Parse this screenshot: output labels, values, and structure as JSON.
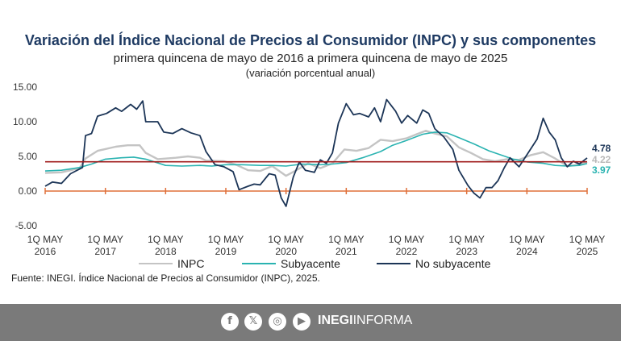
{
  "header": {
    "title": "Variación del Índice Nacional de Precios al Consumidor (INPC) y sus componentes",
    "subtitle": "primera quincena de mayo de 2016 a primera quincena de mayo de 2025",
    "units": "(variación porcentual anual)"
  },
  "legend": {
    "inpc": "INPC",
    "subyacente": "Subyacente",
    "no_subyacente": "No subyacente"
  },
  "source": "Fuente: INEGI. Índice Nacional de Precios al Consumidor (INPC), 2025.",
  "footer": {
    "brand_bold": "INEGI",
    "brand_light": "INFORMA",
    "icons": [
      "facebook-icon",
      "x-icon",
      "instagram-icon",
      "youtube-icon"
    ]
  },
  "colors": {
    "inpc": "#c4c4c4",
    "subyacente": "#2ab3b1",
    "no_subyacente": "#1c3557",
    "reference_line": "#a01c1c",
    "zero_axis": "#e0703a",
    "footer_bg": "#7a7a7a"
  },
  "chart_data": {
    "type": "line",
    "ylim": [
      -5,
      15
    ],
    "yticks": [
      "15.00",
      "10.00",
      "5.00",
      "0.00",
      "-5.00"
    ],
    "ytick_values": [
      15,
      10,
      5,
      0,
      -5
    ],
    "xlim": [
      2016.33,
      2025.33
    ],
    "xticks": [
      {
        "label": "1Q MAY",
        "year": "2016",
        "x": 2016.33
      },
      {
        "label": "1Q MAY",
        "year": "2017",
        "x": 2017.33
      },
      {
        "label": "1Q MAY",
        "year": "2018",
        "x": 2018.33
      },
      {
        "label": "1Q MAY",
        "year": "2019",
        "x": 2019.33
      },
      {
        "label": "1Q MAY",
        "year": "2020",
        "x": 2020.33
      },
      {
        "label": "1Q MAY",
        "year": "2021",
        "x": 2021.33
      },
      {
        "label": "1Q MAY",
        "year": "2022",
        "x": 2022.33
      },
      {
        "label": "1Q MAY",
        "year": "2023",
        "x": 2023.33
      },
      {
        "label": "1Q MAY",
        "year": "2024",
        "x": 2024.33
      },
      {
        "label": "1Q MAY",
        "year": "2025",
        "x": 2025.33
      }
    ],
    "reference_line": 4.22,
    "end_labels": [
      {
        "series": "No subyacente",
        "text": "4.78"
      },
      {
        "series": "INPC",
        "text": "4.22"
      },
      {
        "series": "Subyacente",
        "text": "3.97"
      }
    ],
    "series": [
      {
        "name": "INPC",
        "points": [
          [
            2016.33,
            2.6
          ],
          [
            2016.6,
            2.7
          ],
          [
            2016.9,
            3.3
          ],
          [
            2017.0,
            4.7
          ],
          [
            2017.2,
            5.8
          ],
          [
            2017.5,
            6.4
          ],
          [
            2017.7,
            6.6
          ],
          [
            2017.9,
            6.6
          ],
          [
            2018.0,
            5.5
          ],
          [
            2018.2,
            4.6
          ],
          [
            2018.5,
            4.8
          ],
          [
            2018.7,
            5.0
          ],
          [
            2018.9,
            4.8
          ],
          [
            2019.0,
            4.4
          ],
          [
            2019.3,
            4.3
          ],
          [
            2019.5,
            3.8
          ],
          [
            2019.7,
            3.0
          ],
          [
            2019.9,
            2.9
          ],
          [
            2020.1,
            3.6
          ],
          [
            2020.33,
            2.2
          ],
          [
            2020.5,
            3.0
          ],
          [
            2020.7,
            4.0
          ],
          [
            2020.9,
            3.3
          ],
          [
            2021.1,
            4.0
          ],
          [
            2021.3,
            6.0
          ],
          [
            2021.5,
            5.8
          ],
          [
            2021.7,
            6.2
          ],
          [
            2021.9,
            7.4
          ],
          [
            2022.1,
            7.2
          ],
          [
            2022.33,
            7.6
          ],
          [
            2022.5,
            8.2
          ],
          [
            2022.65,
            8.7
          ],
          [
            2022.8,
            8.3
          ],
          [
            2023.0,
            7.9
          ],
          [
            2023.2,
            6.3
          ],
          [
            2023.4,
            5.5
          ],
          [
            2023.6,
            4.6
          ],
          [
            2023.8,
            4.3
          ],
          [
            2024.0,
            4.6
          ],
          [
            2024.2,
            4.5
          ],
          [
            2024.4,
            5.2
          ],
          [
            2024.6,
            5.6
          ],
          [
            2024.8,
            4.7
          ],
          [
            2025.0,
            3.6
          ],
          [
            2025.2,
            3.8
          ],
          [
            2025.33,
            4.22
          ]
        ]
      },
      {
        "name": "Subyacente",
        "points": [
          [
            2016.33,
            2.9
          ],
          [
            2016.6,
            3.0
          ],
          [
            2016.9,
            3.4
          ],
          [
            2017.1,
            3.9
          ],
          [
            2017.33,
            4.6
          ],
          [
            2017.6,
            4.8
          ],
          [
            2017.8,
            4.9
          ],
          [
            2018.0,
            4.6
          ],
          [
            2018.33,
            3.7
          ],
          [
            2018.6,
            3.6
          ],
          [
            2018.9,
            3.7
          ],
          [
            2019.1,
            3.6
          ],
          [
            2019.33,
            3.8
          ],
          [
            2019.6,
            3.8
          ],
          [
            2019.9,
            3.7
          ],
          [
            2020.1,
            3.7
          ],
          [
            2020.33,
            3.6
          ],
          [
            2020.6,
            3.9
          ],
          [
            2020.9,
            3.8
          ],
          [
            2021.1,
            3.9
          ],
          [
            2021.33,
            4.1
          ],
          [
            2021.6,
            4.8
          ],
          [
            2021.9,
            5.7
          ],
          [
            2022.1,
            6.6
          ],
          [
            2022.33,
            7.3
          ],
          [
            2022.6,
            8.2
          ],
          [
            2022.8,
            8.5
          ],
          [
            2023.0,
            8.4
          ],
          [
            2023.2,
            7.7
          ],
          [
            2023.45,
            6.8
          ],
          [
            2023.7,
            5.8
          ],
          [
            2023.9,
            5.2
          ],
          [
            2024.1,
            4.6
          ],
          [
            2024.33,
            4.2
          ],
          [
            2024.6,
            4.0
          ],
          [
            2024.8,
            3.7
          ],
          [
            2025.0,
            3.6
          ],
          [
            2025.2,
            3.7
          ],
          [
            2025.33,
            3.97
          ]
        ]
      },
      {
        "name": "No subyacente",
        "points": [
          [
            2016.33,
            0.7
          ],
          [
            2016.45,
            1.3
          ],
          [
            2016.6,
            1.1
          ],
          [
            2016.75,
            2.5
          ],
          [
            2016.95,
            3.4
          ],
          [
            2017.0,
            8.0
          ],
          [
            2017.1,
            8.3
          ],
          [
            2017.2,
            10.8
          ],
          [
            2017.35,
            11.2
          ],
          [
            2017.5,
            12.0
          ],
          [
            2017.6,
            11.5
          ],
          [
            2017.75,
            12.5
          ],
          [
            2017.85,
            11.8
          ],
          [
            2017.95,
            13.0
          ],
          [
            2018.0,
            10.0
          ],
          [
            2018.2,
            10.0
          ],
          [
            2018.3,
            8.5
          ],
          [
            2018.45,
            8.3
          ],
          [
            2018.6,
            9.0
          ],
          [
            2018.75,
            8.4
          ],
          [
            2018.9,
            8.0
          ],
          [
            2019.0,
            5.7
          ],
          [
            2019.15,
            3.8
          ],
          [
            2019.3,
            3.5
          ],
          [
            2019.45,
            2.8
          ],
          [
            2019.55,
            0.2
          ],
          [
            2019.7,
            0.7
          ],
          [
            2019.8,
            1.0
          ],
          [
            2019.9,
            0.9
          ],
          [
            2020.05,
            2.5
          ],
          [
            2020.15,
            2.3
          ],
          [
            2020.25,
            -1.0
          ],
          [
            2020.33,
            -2.2
          ],
          [
            2020.45,
            2.0
          ],
          [
            2020.55,
            4.2
          ],
          [
            2020.65,
            3.0
          ],
          [
            2020.8,
            2.7
          ],
          [
            2020.9,
            4.5
          ],
          [
            2021.0,
            4.0
          ],
          [
            2021.1,
            5.5
          ],
          [
            2021.2,
            9.8
          ],
          [
            2021.33,
            12.6
          ],
          [
            2021.45,
            11.0
          ],
          [
            2021.55,
            11.2
          ],
          [
            2021.7,
            10.7
          ],
          [
            2021.8,
            12.0
          ],
          [
            2021.9,
            10.0
          ],
          [
            2022.0,
            13.2
          ],
          [
            2022.15,
            11.5
          ],
          [
            2022.25,
            9.8
          ],
          [
            2022.35,
            10.9
          ],
          [
            2022.5,
            9.8
          ],
          [
            2022.6,
            11.7
          ],
          [
            2022.7,
            11.2
          ],
          [
            2022.8,
            9.0
          ],
          [
            2022.95,
            7.8
          ],
          [
            2023.1,
            6.0
          ],
          [
            2023.2,
            3.0
          ],
          [
            2023.35,
            0.8
          ],
          [
            2023.45,
            -0.3
          ],
          [
            2023.55,
            -1.0
          ],
          [
            2023.65,
            0.5
          ],
          [
            2023.75,
            0.5
          ],
          [
            2023.85,
            1.5
          ],
          [
            2023.95,
            3.3
          ],
          [
            2024.05,
            4.8
          ],
          [
            2024.2,
            3.5
          ],
          [
            2024.35,
            5.5
          ],
          [
            2024.5,
            7.5
          ],
          [
            2024.6,
            10.5
          ],
          [
            2024.7,
            8.5
          ],
          [
            2024.8,
            7.4
          ],
          [
            2024.9,
            4.8
          ],
          [
            2025.0,
            3.5
          ],
          [
            2025.1,
            4.3
          ],
          [
            2025.2,
            3.9
          ],
          [
            2025.33,
            4.78
          ]
        ]
      }
    ]
  }
}
